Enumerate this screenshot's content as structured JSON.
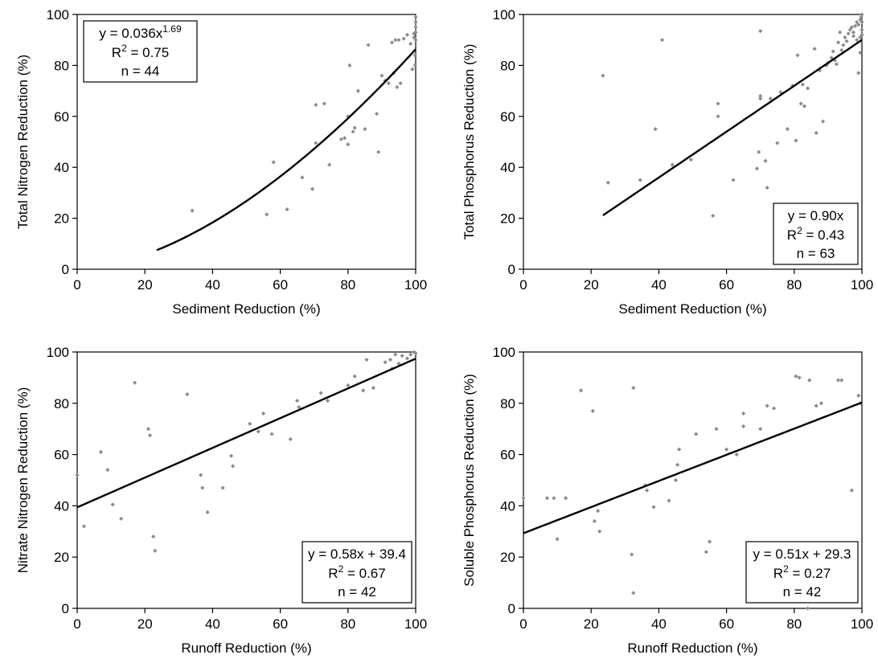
{
  "chart_data": [
    {
      "type": "scatter",
      "xlabel": "Sediment Reduction (%)",
      "ylabel": "Total Nitrogen Reduction (%)",
      "xlim": [
        0,
        100
      ],
      "ylim": [
        0,
        100
      ],
      "xticks": [
        "0",
        "20",
        "40",
        "60",
        "80",
        "100"
      ],
      "yticks": [
        "0",
        "20",
        "40",
        "60",
        "80",
        "100"
      ],
      "grid": false,
      "legend_box": "top-left",
      "fit": {
        "kind": "power",
        "a": 0.036,
        "b": 1.69,
        "x_range": [
          23.5,
          100
        ]
      },
      "equation": {
        "main": "y = 0.036x",
        "sup": "1.69",
        "r2_value": "0.75",
        "n": "n = 44"
      },
      "points": [
        [
          34,
          23
        ],
        [
          56,
          21.5
        ],
        [
          58,
          42
        ],
        [
          62,
          23.5
        ],
        [
          66.5,
          36
        ],
        [
          69.5,
          31.5
        ],
        [
          70.5,
          64.5
        ],
        [
          70.5,
          49.5
        ],
        [
          73,
          65
        ],
        [
          74.5,
          41
        ],
        [
          78,
          51
        ],
        [
          79,
          51.5
        ],
        [
          80,
          49
        ],
        [
          80,
          60
        ],
        [
          80.5,
          80
        ],
        [
          81.5,
          54
        ],
        [
          82,
          55.5
        ],
        [
          83,
          70
        ],
        [
          85,
          55
        ],
        [
          86,
          88
        ],
        [
          88.5,
          61
        ],
        [
          89,
          46
        ],
        [
          90,
          76
        ],
        [
          91,
          74
        ],
        [
          92,
          73
        ],
        [
          93,
          89
        ],
        [
          93.5,
          77
        ],
        [
          94,
          90
        ],
        [
          94.5,
          71.5
        ],
        [
          95,
          90
        ],
        [
          95.5,
          73
        ],
        [
          96.5,
          90.5
        ],
        [
          97.5,
          92
        ],
        [
          98.5,
          88.5
        ],
        [
          99,
          78.5
        ],
        [
          99.5,
          91
        ],
        [
          99.5,
          92.5
        ],
        [
          100,
          90
        ],
        [
          100,
          93
        ],
        [
          100,
          95
        ],
        [
          100,
          97
        ],
        [
          100,
          99
        ],
        [
          99.8,
          84
        ],
        [
          99.8,
          80
        ]
      ]
    },
    {
      "type": "scatter",
      "xlabel": "Sediment Reduction (%)",
      "ylabel": "Total Phosphorus Reduction (%)",
      "xlim": [
        0,
        100
      ],
      "ylim": [
        0,
        100
      ],
      "xticks": [
        "0",
        "20",
        "40",
        "60",
        "80",
        "100"
      ],
      "yticks": [
        "0",
        "20",
        "40",
        "60",
        "80",
        "100"
      ],
      "grid": false,
      "legend_box": "bottom-right",
      "fit": {
        "kind": "linear",
        "a": 0.9,
        "b": 0,
        "x_range": [
          23.5,
          100
        ]
      },
      "equation": {
        "main": "y = 0.90x",
        "sup": "",
        "r2_value": "0.43",
        "n": "n = 63"
      },
      "points": [
        [
          23.5,
          76
        ],
        [
          25,
          34
        ],
        [
          34.5,
          35
        ],
        [
          39,
          55
        ],
        [
          41,
          90
        ],
        [
          44,
          41
        ],
        [
          49.5,
          43
        ],
        [
          56,
          21
        ],
        [
          57.5,
          65
        ],
        [
          57.5,
          60
        ],
        [
          62,
          35
        ],
        [
          69,
          39.5
        ],
        [
          69.5,
          46
        ],
        [
          70,
          67
        ],
        [
          70,
          68
        ],
        [
          70,
          93.5
        ],
        [
          71.5,
          42.5
        ],
        [
          72,
          32
        ],
        [
          73,
          67
        ],
        [
          75,
          49.5
        ],
        [
          76,
          69.5
        ],
        [
          78,
          55
        ],
        [
          79.5,
          72
        ],
        [
          80.5,
          50.5
        ],
        [
          81,
          84
        ],
        [
          82,
          65
        ],
        [
          82.5,
          72.5
        ],
        [
          83,
          64
        ],
        [
          84,
          71
        ],
        [
          86,
          86.5
        ],
        [
          86.5,
          53.5
        ],
        [
          87.5,
          78
        ],
        [
          88.5,
          58
        ],
        [
          89.5,
          80
        ],
        [
          90,
          81
        ],
        [
          91,
          83
        ],
        [
          91.5,
          85.5
        ],
        [
          92,
          82
        ],
        [
          92.5,
          80.5
        ],
        [
          93,
          89
        ],
        [
          93.5,
          93
        ],
        [
          94,
          86
        ],
        [
          94.5,
          88
        ],
        [
          95,
          91
        ],
        [
          95.5,
          89.5
        ],
        [
          96,
          92.5
        ],
        [
          96.5,
          94
        ],
        [
          97,
          95
        ],
        [
          97.5,
          93
        ],
        [
          98,
          95.5
        ],
        [
          98.5,
          97
        ],
        [
          99,
          96
        ],
        [
          99,
          77
        ],
        [
          99.5,
          98
        ],
        [
          99.5,
          85
        ],
        [
          99.8,
          99
        ],
        [
          100,
          100
        ],
        [
          100,
          97
        ],
        [
          100,
          94
        ],
        [
          100,
          92
        ],
        [
          99.5,
          91
        ],
        [
          98.5,
          90
        ],
        [
          97.5,
          91.5
        ]
      ]
    },
    {
      "type": "scatter",
      "xlabel": "Runoff Reduction (%)",
      "ylabel": "Nitrate Nitrogen Reduction (%)",
      "xlim": [
        0,
        100
      ],
      "ylim": [
        0,
        100
      ],
      "xticks": [
        "0",
        "20",
        "40",
        "60",
        "80",
        "100"
      ],
      "yticks": [
        "0",
        "20",
        "40",
        "60",
        "80",
        "100"
      ],
      "grid": false,
      "legend_box": "bottom-right",
      "fit": {
        "kind": "linear",
        "a": 0.58,
        "b": 39.4,
        "x_range": [
          0,
          100
        ]
      },
      "equation": {
        "main": "y = 0.58x + 39.4",
        "sup": "",
        "r2_value": "0.67",
        "n": "n = 42"
      },
      "points": [
        [
          0,
          52
        ],
        [
          2,
          32
        ],
        [
          7,
          61
        ],
        [
          9,
          54
        ],
        [
          10.5,
          40.5
        ],
        [
          13,
          35
        ],
        [
          17,
          88
        ],
        [
          21,
          70
        ],
        [
          21.5,
          67.5
        ],
        [
          22.5,
          28
        ],
        [
          23,
          22.5
        ],
        [
          32.5,
          83.5
        ],
        [
          36.5,
          52
        ],
        [
          37,
          47
        ],
        [
          38.5,
          37.5
        ],
        [
          43,
          47
        ],
        [
          45.5,
          59.5
        ],
        [
          46,
          55.5
        ],
        [
          51,
          72
        ],
        [
          53.5,
          69
        ],
        [
          55,
          76
        ],
        [
          57.5,
          68
        ],
        [
          63,
          66
        ],
        [
          65,
          81
        ],
        [
          65.5,
          78.5
        ],
        [
          72,
          84
        ],
        [
          74,
          81
        ],
        [
          80,
          87
        ],
        [
          82,
          90.5
        ],
        [
          84.5,
          85
        ],
        [
          85.5,
          97
        ],
        [
          87.5,
          86
        ],
        [
          91,
          96
        ],
        [
          92.5,
          97
        ],
        [
          93,
          93.5
        ],
        [
          94,
          99
        ],
        [
          95,
          95.5
        ],
        [
          96,
          98.5
        ],
        [
          97.5,
          97.5
        ],
        [
          98.5,
          99
        ],
        [
          99.5,
          100
        ],
        [
          100,
          99.5
        ]
      ]
    },
    {
      "type": "scatter",
      "xlabel": "Runoff Reduction (%)",
      "ylabel": "Soluble Phosphorus Reduction (%)",
      "xlim": [
        0,
        100
      ],
      "ylim": [
        0,
        100
      ],
      "xticks": [
        "0",
        "20",
        "40",
        "60",
        "80",
        "100"
      ],
      "yticks": [
        "0",
        "20",
        "40",
        "60",
        "80",
        "100"
      ],
      "grid": false,
      "legend_box": "bottom-right",
      "fit": {
        "kind": "linear",
        "a": 0.51,
        "b": 29.3,
        "x_range": [
          0,
          100
        ]
      },
      "equation": {
        "main": "y = 0.51x + 29.3",
        "sup": "",
        "r2_value": "0.27",
        "n": "n = 42"
      },
      "points": [
        [
          0,
          43
        ],
        [
          7,
          43
        ],
        [
          9,
          43
        ],
        [
          10,
          27
        ],
        [
          12.5,
          43
        ],
        [
          17,
          85
        ],
        [
          20.5,
          77
        ],
        [
          21,
          34
        ],
        [
          22,
          38
        ],
        [
          22.5,
          30
        ],
        [
          32,
          21
        ],
        [
          32.5,
          6
        ],
        [
          32.5,
          86
        ],
        [
          36,
          48
        ],
        [
          36.5,
          46
        ],
        [
          38.5,
          39.5
        ],
        [
          43,
          42
        ],
        [
          45.5,
          56
        ],
        [
          46,
          62
        ],
        [
          51,
          68
        ],
        [
          54,
          22
        ],
        [
          55,
          26
        ],
        [
          57,
          70
        ],
        [
          63,
          60
        ],
        [
          65,
          76
        ],
        [
          65,
          71
        ],
        [
          72,
          79
        ],
        [
          74,
          78
        ],
        [
          80.5,
          90.5
        ],
        [
          81.5,
          90
        ],
        [
          84,
          0
        ],
        [
          84.5,
          89
        ],
        [
          86.5,
          79
        ],
        [
          93,
          89
        ],
        [
          94,
          89
        ],
        [
          97,
          46
        ],
        [
          99,
          83
        ],
        [
          99.5,
          80
        ],
        [
          70,
          70
        ],
        [
          60,
          62
        ],
        [
          88,
          80
        ],
        [
          45,
          50
        ]
      ]
    }
  ]
}
